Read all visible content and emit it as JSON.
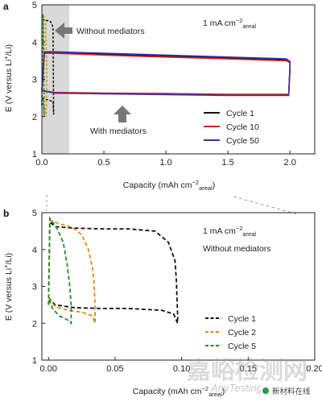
{
  "chart_data": [
    {
      "panel": "a",
      "type": "line",
      "xlabel_prefix": "Capacity (mAh cm",
      "xlabel_unit_sup": "−2",
      "xlabel_unit_sub": "areal",
      "ylabel_prefix": "E (V versus Li",
      "ylabel_sup": "+",
      "ylabel_suffix": "/Li)",
      "xlim": [
        0,
        2.2
      ],
      "ylim": [
        1,
        5
      ],
      "x_ticks": [
        "0.0",
        "0.5",
        "1.0",
        "1.5",
        "2.0"
      ],
      "x_tick_values": [
        0,
        0.5,
        1.0,
        1.5,
        2.0
      ],
      "y_ticks": [
        "1",
        "2",
        "3",
        "4",
        "5"
      ],
      "y_tick_values": [
        1,
        2,
        3,
        4,
        5
      ],
      "shaded_region": [
        0,
        0.22
      ],
      "condition_value": "1 mA cm",
      "condition_sup": "−2",
      "condition_sub": "areal",
      "annotation_without": "Without mediators",
      "annotation_with": "With mediators",
      "legend_position": "bottom-right",
      "legend": [
        {
          "name": "Cycle 1",
          "color": "#111111"
        },
        {
          "name": "Cycle 10",
          "color": "#cc2222"
        },
        {
          "name": "Cycle 50",
          "color": "#3a2fa8"
        }
      ],
      "series": [
        {
          "name": "Cycle 1",
          "color": "#111111",
          "charge": {
            "x": [
              0,
              0.02,
              0.1,
              0.5,
              1.0,
              1.5,
              1.97,
              2.0,
              2.0
            ],
            "y": [
              2.7,
              3.72,
              3.72,
              3.68,
              3.62,
              3.57,
              3.52,
              3.45,
              3.3
            ]
          },
          "discharge": {
            "x": [
              2.0,
              1.99,
              1.5,
              1.0,
              0.5,
              0.1,
              0.0
            ],
            "y": [
              3.3,
              2.58,
              2.58,
              2.6,
              2.62,
              2.64,
              2.7
            ]
          }
        },
        {
          "name": "Cycle 10",
          "color": "#cc2222",
          "charge": {
            "x": [
              0,
              0.02,
              0.1,
              0.5,
              1.0,
              1.5,
              1.97,
              2.0,
              2.0
            ],
            "y": [
              2.7,
              3.7,
              3.7,
              3.65,
              3.6,
              3.55,
              3.5,
              3.45,
              3.3
            ]
          },
          "discharge": {
            "x": [
              2.0,
              1.99,
              1.5,
              1.0,
              0.5,
              0.1,
              0.0
            ],
            "y": [
              3.3,
              2.6,
              2.6,
              2.62,
              2.63,
              2.65,
              2.7
            ]
          }
        },
        {
          "name": "Cycle 50",
          "color": "#3a2fa8",
          "charge": {
            "x": [
              0,
              0.02,
              0.1,
              0.5,
              1.0,
              1.5,
              1.97,
              2.0,
              2.0
            ],
            "y": [
              2.7,
              3.74,
              3.74,
              3.7,
              3.65,
              3.6,
              3.55,
              3.48,
              3.3
            ]
          },
          "discharge": {
            "x": [
              2.0,
              1.99,
              1.5,
              1.0,
              0.5,
              0.1,
              0.0
            ],
            "y": [
              3.3,
              2.57,
              2.57,
              2.59,
              2.61,
              2.63,
              2.7
            ]
          }
        }
      ],
      "no_mediator_curves": [
        {
          "color": "#111111",
          "x": [
            0.0,
            0.01,
            0.04,
            0.07,
            0.09,
            0.095,
            0.09,
            0.05,
            0.02,
            0.0
          ],
          "y": [
            2.3,
            4.6,
            4.58,
            4.55,
            4.4,
            2.05,
            2.4,
            2.45,
            2.47,
            2.5
          ]
        },
        {
          "color": "#e08a20",
          "x": [
            0.0,
            0.01,
            0.03,
            0.04,
            0.035,
            0.02,
            0.0
          ],
          "y": [
            2.3,
            4.75,
            4.55,
            3.2,
            2.0,
            2.3,
            2.5
          ]
        },
        {
          "color": "#2a8a2a",
          "x": [
            0.0,
            0.008,
            0.015,
            0.018,
            0.012,
            0.0
          ],
          "y": [
            2.3,
            4.75,
            4.3,
            2.0,
            2.3,
            2.5
          ]
        }
      ]
    },
    {
      "panel": "b",
      "type": "line",
      "xlabel_prefix": "Capacity (mAh cm",
      "xlabel_unit_sup": "−2",
      "xlabel_unit_sub": "areal",
      "ylabel_prefix": "E (V versus Li",
      "ylabel_sup": "+",
      "ylabel_suffix": "/Li)",
      "xlim": [
        -0.005,
        0.2
      ],
      "ylim": [
        1,
        5
      ],
      "x_ticks": [
        "0.00",
        "0.05",
        "0.10",
        "0.15",
        "0.20"
      ],
      "x_tick_values": [
        0,
        0.05,
        0.1,
        0.15,
        0.2
      ],
      "y_ticks": [
        "1",
        "2",
        "3",
        "4",
        "5"
      ],
      "y_tick_values": [
        1,
        2,
        3,
        4,
        5
      ],
      "condition_value": "1 mA cm",
      "condition_sup": "−2",
      "condition_sub": "areal",
      "annotation_without": "Without mediators",
      "legend_position": "bottom-right",
      "legend": [
        {
          "name": "Cycle 1",
          "color": "#111111"
        },
        {
          "name": "Cycle 2",
          "color": "#e08a20"
        },
        {
          "name": "Cycle 5",
          "color": "#2a8a2a"
        }
      ],
      "series": [
        {
          "name": "Cycle 1",
          "color": "#111111",
          "x": [
            0.0,
            0.001,
            0.005,
            0.02,
            0.04,
            0.06,
            0.08,
            0.09,
            0.095,
            0.096,
            0.097,
            0.097,
            0.094,
            0.085,
            0.06,
            0.04,
            0.02,
            0.005,
            0.0
          ],
          "y": [
            2.5,
            4.75,
            4.62,
            4.58,
            4.56,
            4.56,
            4.5,
            4.2,
            3.7,
            3.2,
            2.2,
            2.0,
            2.25,
            2.35,
            2.4,
            2.4,
            2.42,
            2.5,
            2.7
          ]
        },
        {
          "name": "Cycle 2",
          "color": "#e08a20",
          "x": [
            0.0,
            0.001,
            0.008,
            0.018,
            0.025,
            0.03,
            0.033,
            0.034,
            0.035,
            0.035,
            0.033,
            0.025,
            0.015,
            0.005,
            0.0
          ],
          "y": [
            2.5,
            4.8,
            4.7,
            4.6,
            4.4,
            4.0,
            3.5,
            3.2,
            2.5,
            2.0,
            2.2,
            2.3,
            2.35,
            2.45,
            2.7
          ]
        },
        {
          "name": "Cycle 5",
          "color": "#2a8a2a",
          "x": [
            0.0,
            0.001,
            0.006,
            0.011,
            0.014,
            0.016,
            0.017,
            0.017,
            0.014,
            0.008,
            0.003,
            0.0
          ],
          "y": [
            2.5,
            4.85,
            4.6,
            4.2,
            3.6,
            3.0,
            2.5,
            2.0,
            2.1,
            2.2,
            2.4,
            2.7
          ]
        }
      ]
    }
  ],
  "watermark": {
    "main": "嘉峪检测网",
    "sub": "AnyTesting.com",
    "badge": "新材料在线"
  }
}
